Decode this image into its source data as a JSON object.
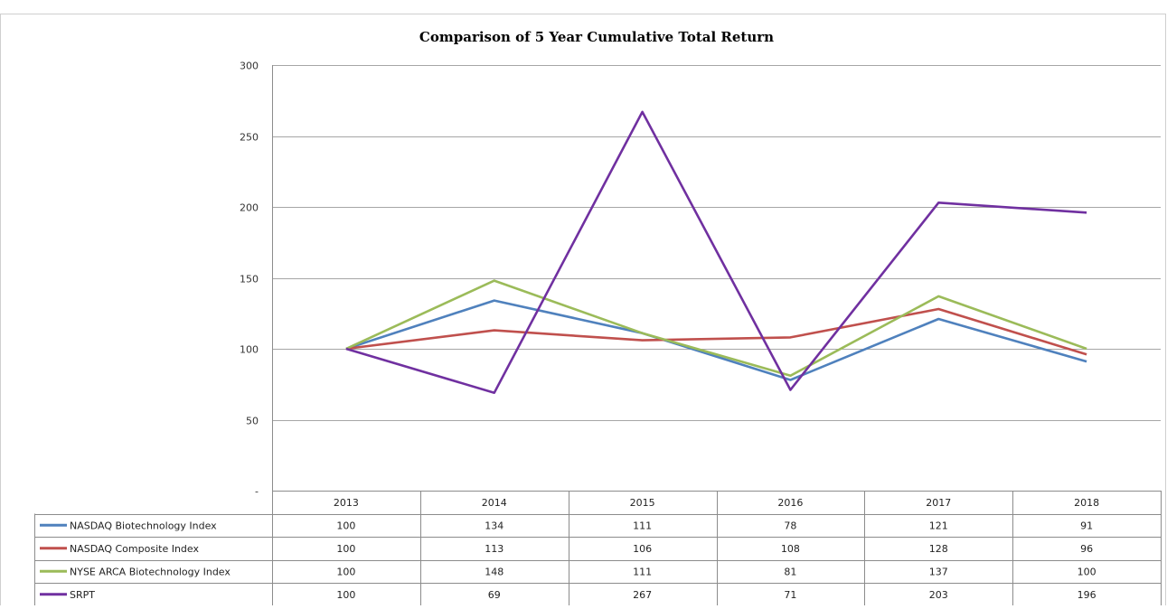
{
  "chart_data": {
    "type": "line",
    "title": "Comparison of 5 Year Cumulative Total Return",
    "categories": [
      "2013",
      "2014",
      "2015",
      "2016",
      "2017",
      "2018"
    ],
    "ylim": [
      0,
      300
    ],
    "yticks": [
      0,
      50,
      100,
      150,
      200,
      250,
      300
    ],
    "ytick_labels": [
      "-",
      "50",
      "100",
      "150",
      "200",
      "250",
      "300"
    ],
    "grid": true,
    "legend_placement": "data table below chart",
    "series": [
      {
        "name": "NASDAQ Biotechnology Index",
        "color": "#4f81bd",
        "values": [
          100,
          134,
          111,
          78,
          121,
          91
        ]
      },
      {
        "name": "NASDAQ Composite Index",
        "color": "#c0504d",
        "values": [
          100,
          113,
          106,
          108,
          128,
          96
        ]
      },
      {
        "name": "NYSE ARCA Biotechnology Index",
        "color": "#9bbb59",
        "values": [
          100,
          148,
          111,
          81,
          137,
          100
        ]
      },
      {
        "name": "SRPT",
        "color": "#7030a0",
        "values": [
          100,
          69,
          267,
          71,
          203,
          196
        ]
      }
    ]
  }
}
